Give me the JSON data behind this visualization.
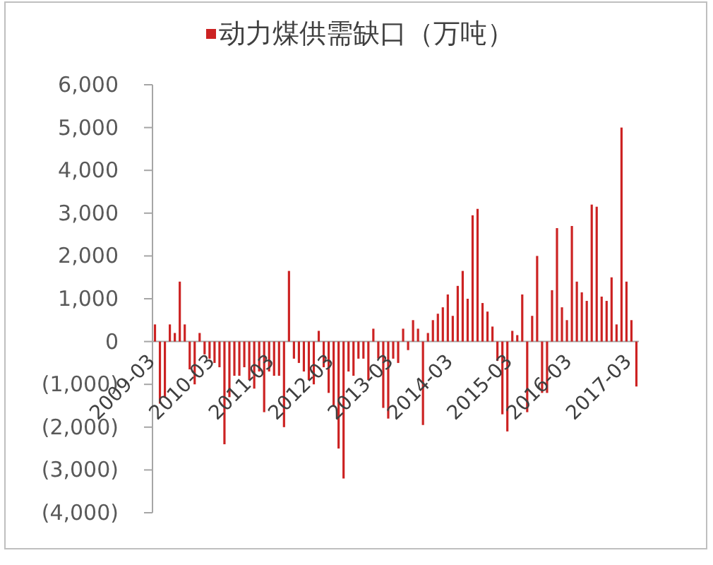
{
  "chart_data": {
    "type": "bar",
    "categories": [
      "2009-03",
      null,
      null,
      null,
      null,
      null,
      null,
      null,
      null,
      null,
      null,
      null,
      "2010-03",
      null,
      null,
      null,
      null,
      null,
      null,
      null,
      null,
      null,
      null,
      null,
      "2011-03",
      null,
      null,
      null,
      null,
      null,
      null,
      null,
      null,
      null,
      null,
      null,
      "2012-03",
      null,
      null,
      null,
      null,
      null,
      null,
      null,
      null,
      null,
      null,
      null,
      "2013-03",
      null,
      null,
      null,
      null,
      null,
      null,
      null,
      null,
      null,
      null,
      null,
      "2014-03",
      null,
      null,
      null,
      null,
      null,
      null,
      null,
      null,
      null,
      null,
      null,
      "2015-03",
      null,
      null,
      null,
      null,
      null,
      null,
      null,
      null,
      null,
      null,
      null,
      "2016-03",
      null,
      null,
      null,
      null,
      null,
      null,
      null,
      null,
      null,
      null,
      null,
      "2017-03",
      null
    ],
    "series": [
      {
        "name": "动力煤供需缺口（万吨）",
        "color": "#cc2222",
        "values": [
          400,
          -1450,
          -1300,
          400,
          200,
          1400,
          400,
          -650,
          -1000,
          200,
          -300,
          -400,
          -500,
          -600,
          -2400,
          -1300,
          -800,
          -800,
          -600,
          -900,
          -1100,
          -700,
          -1650,
          -700,
          -800,
          -800,
          -2000,
          1650,
          -400,
          -500,
          -700,
          -900,
          -1000,
          250,
          -600,
          -1200,
          -1500,
          -2500,
          -3200,
          -700,
          -800,
          -400,
          -400,
          -900,
          300,
          -400,
          -1550,
          -1800,
          -400,
          -500,
          300,
          -200,
          500,
          300,
          -1950,
          200,
          500,
          650,
          800,
          1100,
          600,
          1300,
          1650,
          1000,
          2950,
          3100,
          900,
          700,
          350,
          -450,
          -1700,
          -2100,
          250,
          150,
          1100,
          -1650,
          600,
          2000,
          -1200,
          -1200,
          1200,
          2650,
          800,
          500,
          2700,
          1400,
          1150,
          950,
          3200,
          3150,
          1050,
          950,
          1500,
          400,
          5000,
          1400,
          500,
          -1050
        ]
      }
    ],
    "ylim": [
      -4000,
      6000
    ],
    "yticks": [
      {
        "value": -4000,
        "label": "(4,000)"
      },
      {
        "value": -3000,
        "label": "(3,000)"
      },
      {
        "value": -2000,
        "label": "(2,000)"
      },
      {
        "value": -1000,
        "label": "(1,000)"
      },
      0,
      {
        "value": 1000,
        "label": "1,000"
      },
      {
        "value": 2000,
        "label": "2,000"
      },
      {
        "value": 3000,
        "label": "3,000"
      },
      {
        "value": 4000,
        "label": "4,000"
      },
      {
        "value": 5000,
        "label": "5,000"
      },
      {
        "value": 6000,
        "label": "6,000"
      }
    ],
    "legend": "top"
  }
}
